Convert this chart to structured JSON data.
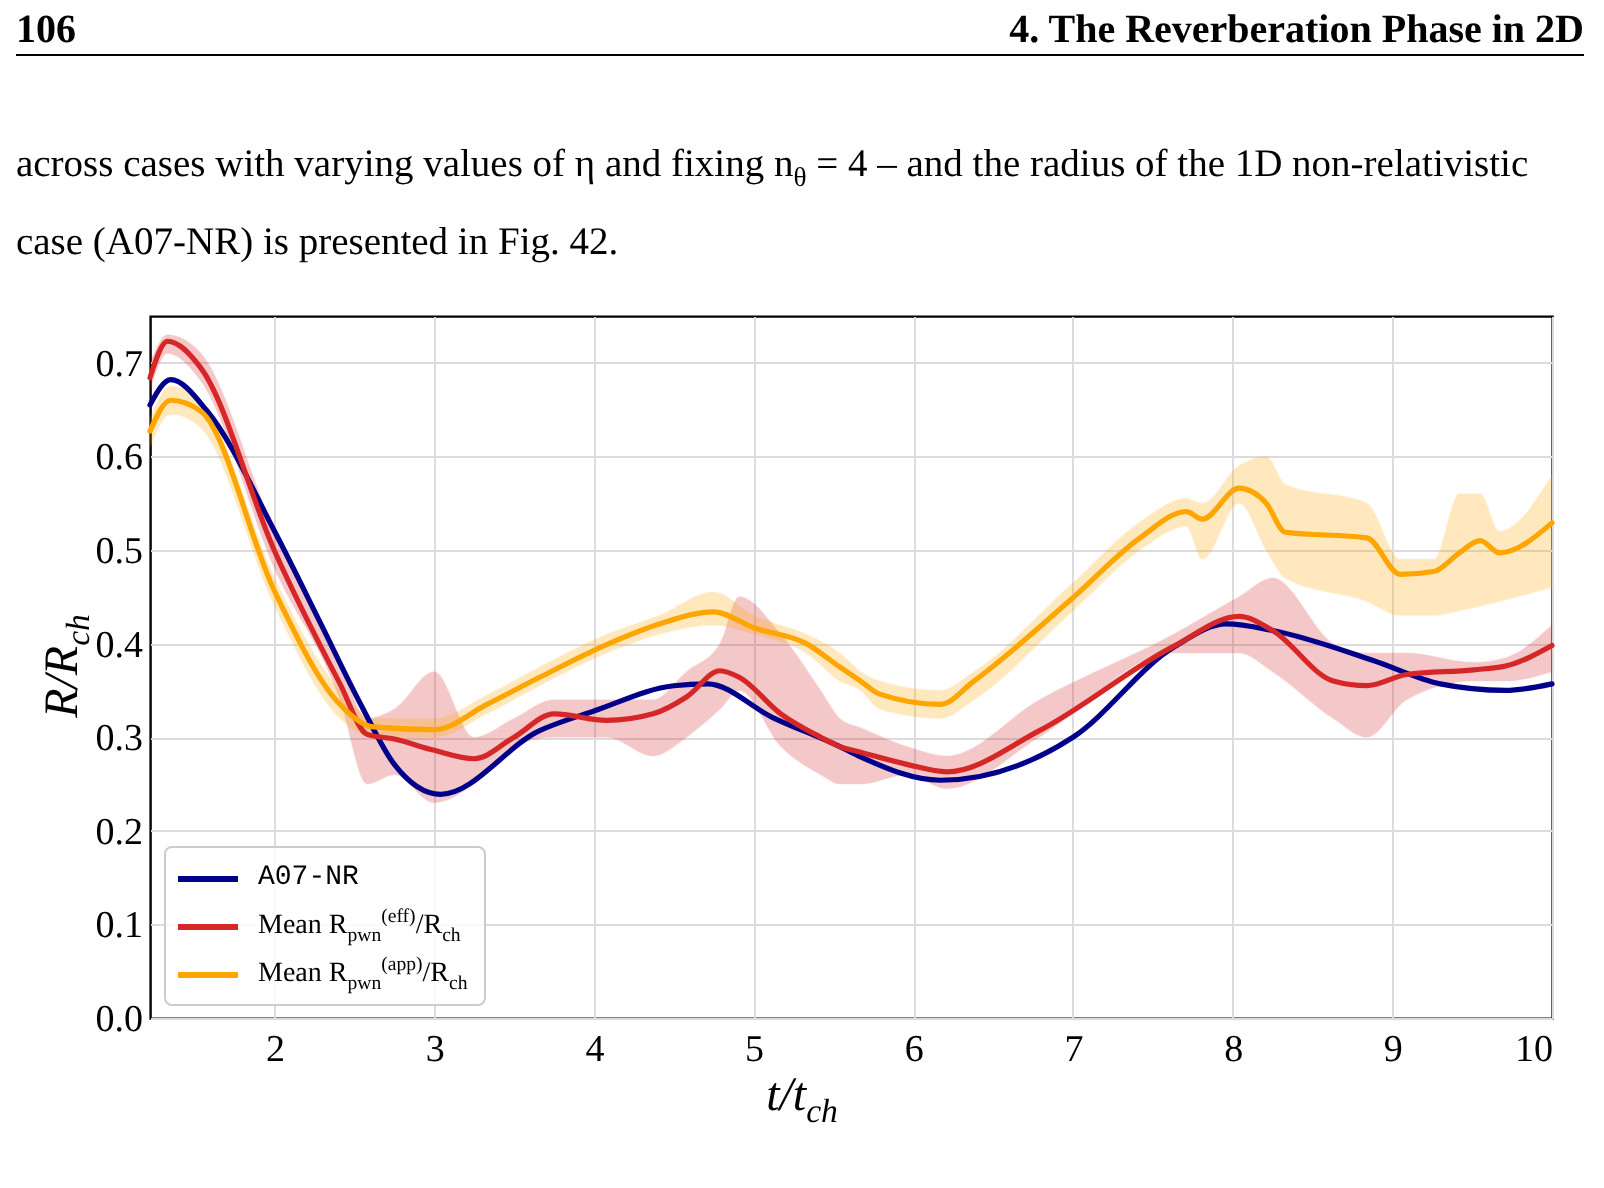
{
  "chart_data": {
    "type": "line",
    "xlabel": "t/t$_{ch}$",
    "ylabel": "R/R$_{ch}$",
    "annotations": [
      "106",
      "4. The Reverberation Phase in 2D",
      "across cases with varying values of η and fixing n$_{θ}$ = 4 – and the radius of the 1D non-relativistic case (A07-NR) is presented in Fig. 42."
    ],
    "xlim": [
      1.22,
      10
    ],
    "ylim": [
      0,
      0.75
    ],
    "xticks": [
      2,
      3,
      4,
      5,
      6,
      7,
      8,
      9,
      10
    ],
    "yticks": [
      {
        "value": 0,
        "label": "0.0"
      },
      0.1,
      0.2,
      0.3,
      0.4,
      0.5,
      0.6,
      0.7
    ],
    "grid": true,
    "legend": "bottom left",
    "series": [
      {
        "name": "A07-NR",
        "color": "#00008b",
        "x": [
          1.22,
          1.35,
          1.58,
          2.0,
          2.29,
          2.54,
          2.75,
          3.04,
          3.66,
          4.0,
          4.5,
          4.71,
          5.12,
          5.54,
          5.67,
          6.17,
          7.0,
          7.63,
          7.96,
          8.25,
          8.88,
          9.3,
          9.71,
          10
        ],
        "values": [
          0.655,
          0.682,
          0.648,
          0.52,
          0.421,
          0.335,
          0.271,
          0.239,
          0.307,
          0.328,
          0.355,
          0.357,
          0.321,
          0.29,
          0.279,
          0.254,
          0.3,
          0.396,
          0.421,
          0.414,
          0.382,
          0.357,
          0.35,
          0.357
        ]
      },
      {
        "name": "Mean R$_{pwn}$$^{(eff)}$/R$_{ch}$",
        "color": "#d62728",
        "x": [
          1.22,
          1.33,
          1.54,
          2.0,
          2.41,
          2.58,
          2.75,
          3.0,
          3.25,
          3.5,
          3.75,
          4.08,
          4.37,
          4.58,
          4.79,
          4.91,
          5.17,
          5.42,
          5.54,
          5.67,
          5.96,
          6.21,
          6.79,
          7.63,
          8.04,
          8.25,
          8.63,
          8.84,
          9.09,
          9.51,
          9.71,
          10
        ],
        "values": [
          0.684,
          0.723,
          0.694,
          0.499,
          0.357,
          0.303,
          0.298,
          0.286,
          0.277,
          0.3,
          0.325,
          0.318,
          0.325,
          0.343,
          0.371,
          0.364,
          0.325,
          0.3,
          0.29,
          0.284,
          0.271,
          0.263,
          0.307,
          0.397,
          0.429,
          0.414,
          0.36,
          0.355,
          0.367,
          0.372,
          0.376,
          0.398
        ],
        "lower": [
          0.67,
          0.71,
          0.68,
          0.48,
          0.34,
          0.25,
          0.26,
          0.23,
          0.25,
          0.29,
          0.3,
          0.3,
          0.28,
          0.3,
          0.33,
          0.35,
          0.29,
          0.26,
          0.25,
          0.25,
          0.26,
          0.245,
          0.3,
          0.39,
          0.39,
          0.37,
          0.32,
          0.3,
          0.34,
          0.36,
          0.36,
          0.37
        ],
        "upper": [
          0.7,
          0.73,
          0.71,
          0.52,
          0.38,
          0.32,
          0.33,
          0.37,
          0.3,
          0.32,
          0.34,
          0.34,
          0.34,
          0.37,
          0.4,
          0.45,
          0.41,
          0.35,
          0.32,
          0.31,
          0.29,
          0.28,
          0.34,
          0.41,
          0.45,
          0.47,
          0.4,
          0.39,
          0.39,
          0.38,
          0.385,
          0.42
        ]
      },
      {
        "name": "Mean R$_{pwn}$$^{(app)}$/R$_{ch}$",
        "color": "#ffa500",
        "x": [
          1.22,
          1.35,
          1.54,
          2.0,
          2.41,
          2.62,
          3.0,
          3.33,
          3.66,
          4.08,
          4.41,
          4.75,
          5.0,
          5.33,
          5.54,
          5.67,
          5.79,
          6.17,
          6.38,
          7.0,
          7.42,
          7.71,
          7.81,
          8.04,
          8.21,
          8.33,
          8.84,
          9.05,
          9.26,
          9.42,
          9.55,
          9.67,
          10
        ],
        "values": [
          0.627,
          0.66,
          0.648,
          0.456,
          0.335,
          0.311,
          0.308,
          0.335,
          0.364,
          0.399,
          0.421,
          0.434,
          0.417,
          0.4,
          0.375,
          0.36,
          0.346,
          0.335,
          0.36,
          0.449,
          0.513,
          0.541,
          0.533,
          0.566,
          0.55,
          0.519,
          0.513,
          0.474,
          0.477,
          0.497,
          0.51,
          0.497,
          0.529
        ],
        "lower": [
          0.61,
          0.645,
          0.63,
          0.44,
          0.32,
          0.3,
          0.3,
          0.325,
          0.355,
          0.39,
          0.41,
          0.42,
          0.41,
          0.39,
          0.36,
          0.35,
          0.33,
          0.32,
          0.34,
          0.435,
          0.5,
          0.525,
          0.49,
          0.55,
          0.5,
          0.47,
          0.445,
          0.43,
          0.43,
          0.435,
          0.44,
          0.445,
          0.46
        ],
        "upper": [
          0.64,
          0.675,
          0.66,
          0.47,
          0.35,
          0.32,
          0.32,
          0.345,
          0.375,
          0.41,
          0.43,
          0.455,
          0.43,
          0.41,
          0.39,
          0.37,
          0.36,
          0.35,
          0.37,
          0.465,
          0.53,
          0.555,
          0.55,
          0.59,
          0.6,
          0.57,
          0.55,
          0.49,
          0.49,
          0.56,
          0.56,
          0.52,
          0.58
        ]
      }
    ]
  }
}
